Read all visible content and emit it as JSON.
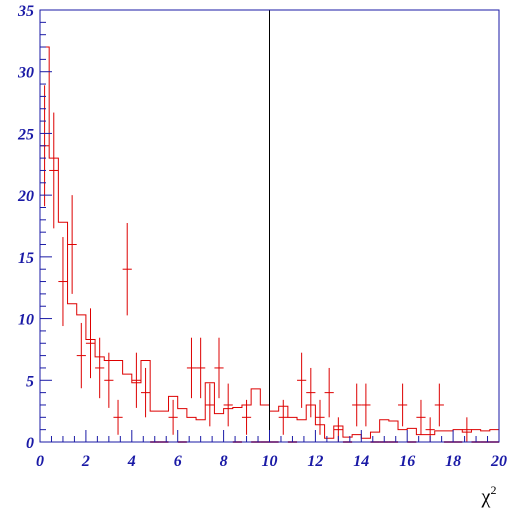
{
  "chart_data": {
    "type": "histogram",
    "title": "",
    "xlabel": "χ",
    "xlabel_superscript": "2",
    "ylabel": "",
    "xlim": [
      0,
      20
    ],
    "ylim": [
      0,
      35
    ],
    "x_ticks": [
      0,
      2,
      4,
      6,
      8,
      10,
      12,
      14,
      16,
      18,
      20
    ],
    "y_ticks": [
      0,
      5,
      10,
      15,
      20,
      25,
      30,
      35
    ],
    "grid": false,
    "legend": "none",
    "colors": {
      "axes": "#1a1aa6",
      "series": "#dd0000",
      "cut_line": "#000000"
    },
    "bin_width": 0.4,
    "cut_line_x": 10,
    "series": [
      {
        "kind": "step-histogram",
        "values": [
          32,
          23,
          17.8,
          11.2,
          10.3,
          8.3,
          6.9,
          6.6,
          6.6,
          5.5,
          4.8,
          6.6,
          2.5,
          2.5,
          3.7,
          2.7,
          2.0,
          1.8,
          4.8,
          2.3,
          2.7,
          2.8,
          3.0,
          4.3,
          3.0,
          2.5,
          2.9,
          2.0,
          1.8,
          3.0,
          1.4,
          0.3,
          1.3,
          0.4,
          0.6,
          0.3,
          0.8,
          1.8,
          1.7,
          1.0,
          1.1,
          0.6,
          0.6,
          0.9,
          0.9,
          1.0,
          0.8,
          1.0,
          0.9,
          1.0
        ]
      },
      {
        "kind": "points-with-errors",
        "values": [
          24,
          22,
          13,
          16,
          7,
          8,
          6,
          5,
          2,
          14,
          5,
          4,
          0,
          0,
          2,
          0,
          6,
          6,
          3,
          6,
          3,
          0,
          2,
          0,
          0,
          0,
          2,
          0,
          5,
          4,
          2,
          4,
          1,
          0,
          3,
          3,
          0,
          0,
          0,
          3,
          0,
          2,
          1,
          3,
          0,
          0,
          1,
          0,
          0,
          0
        ]
      }
    ]
  }
}
